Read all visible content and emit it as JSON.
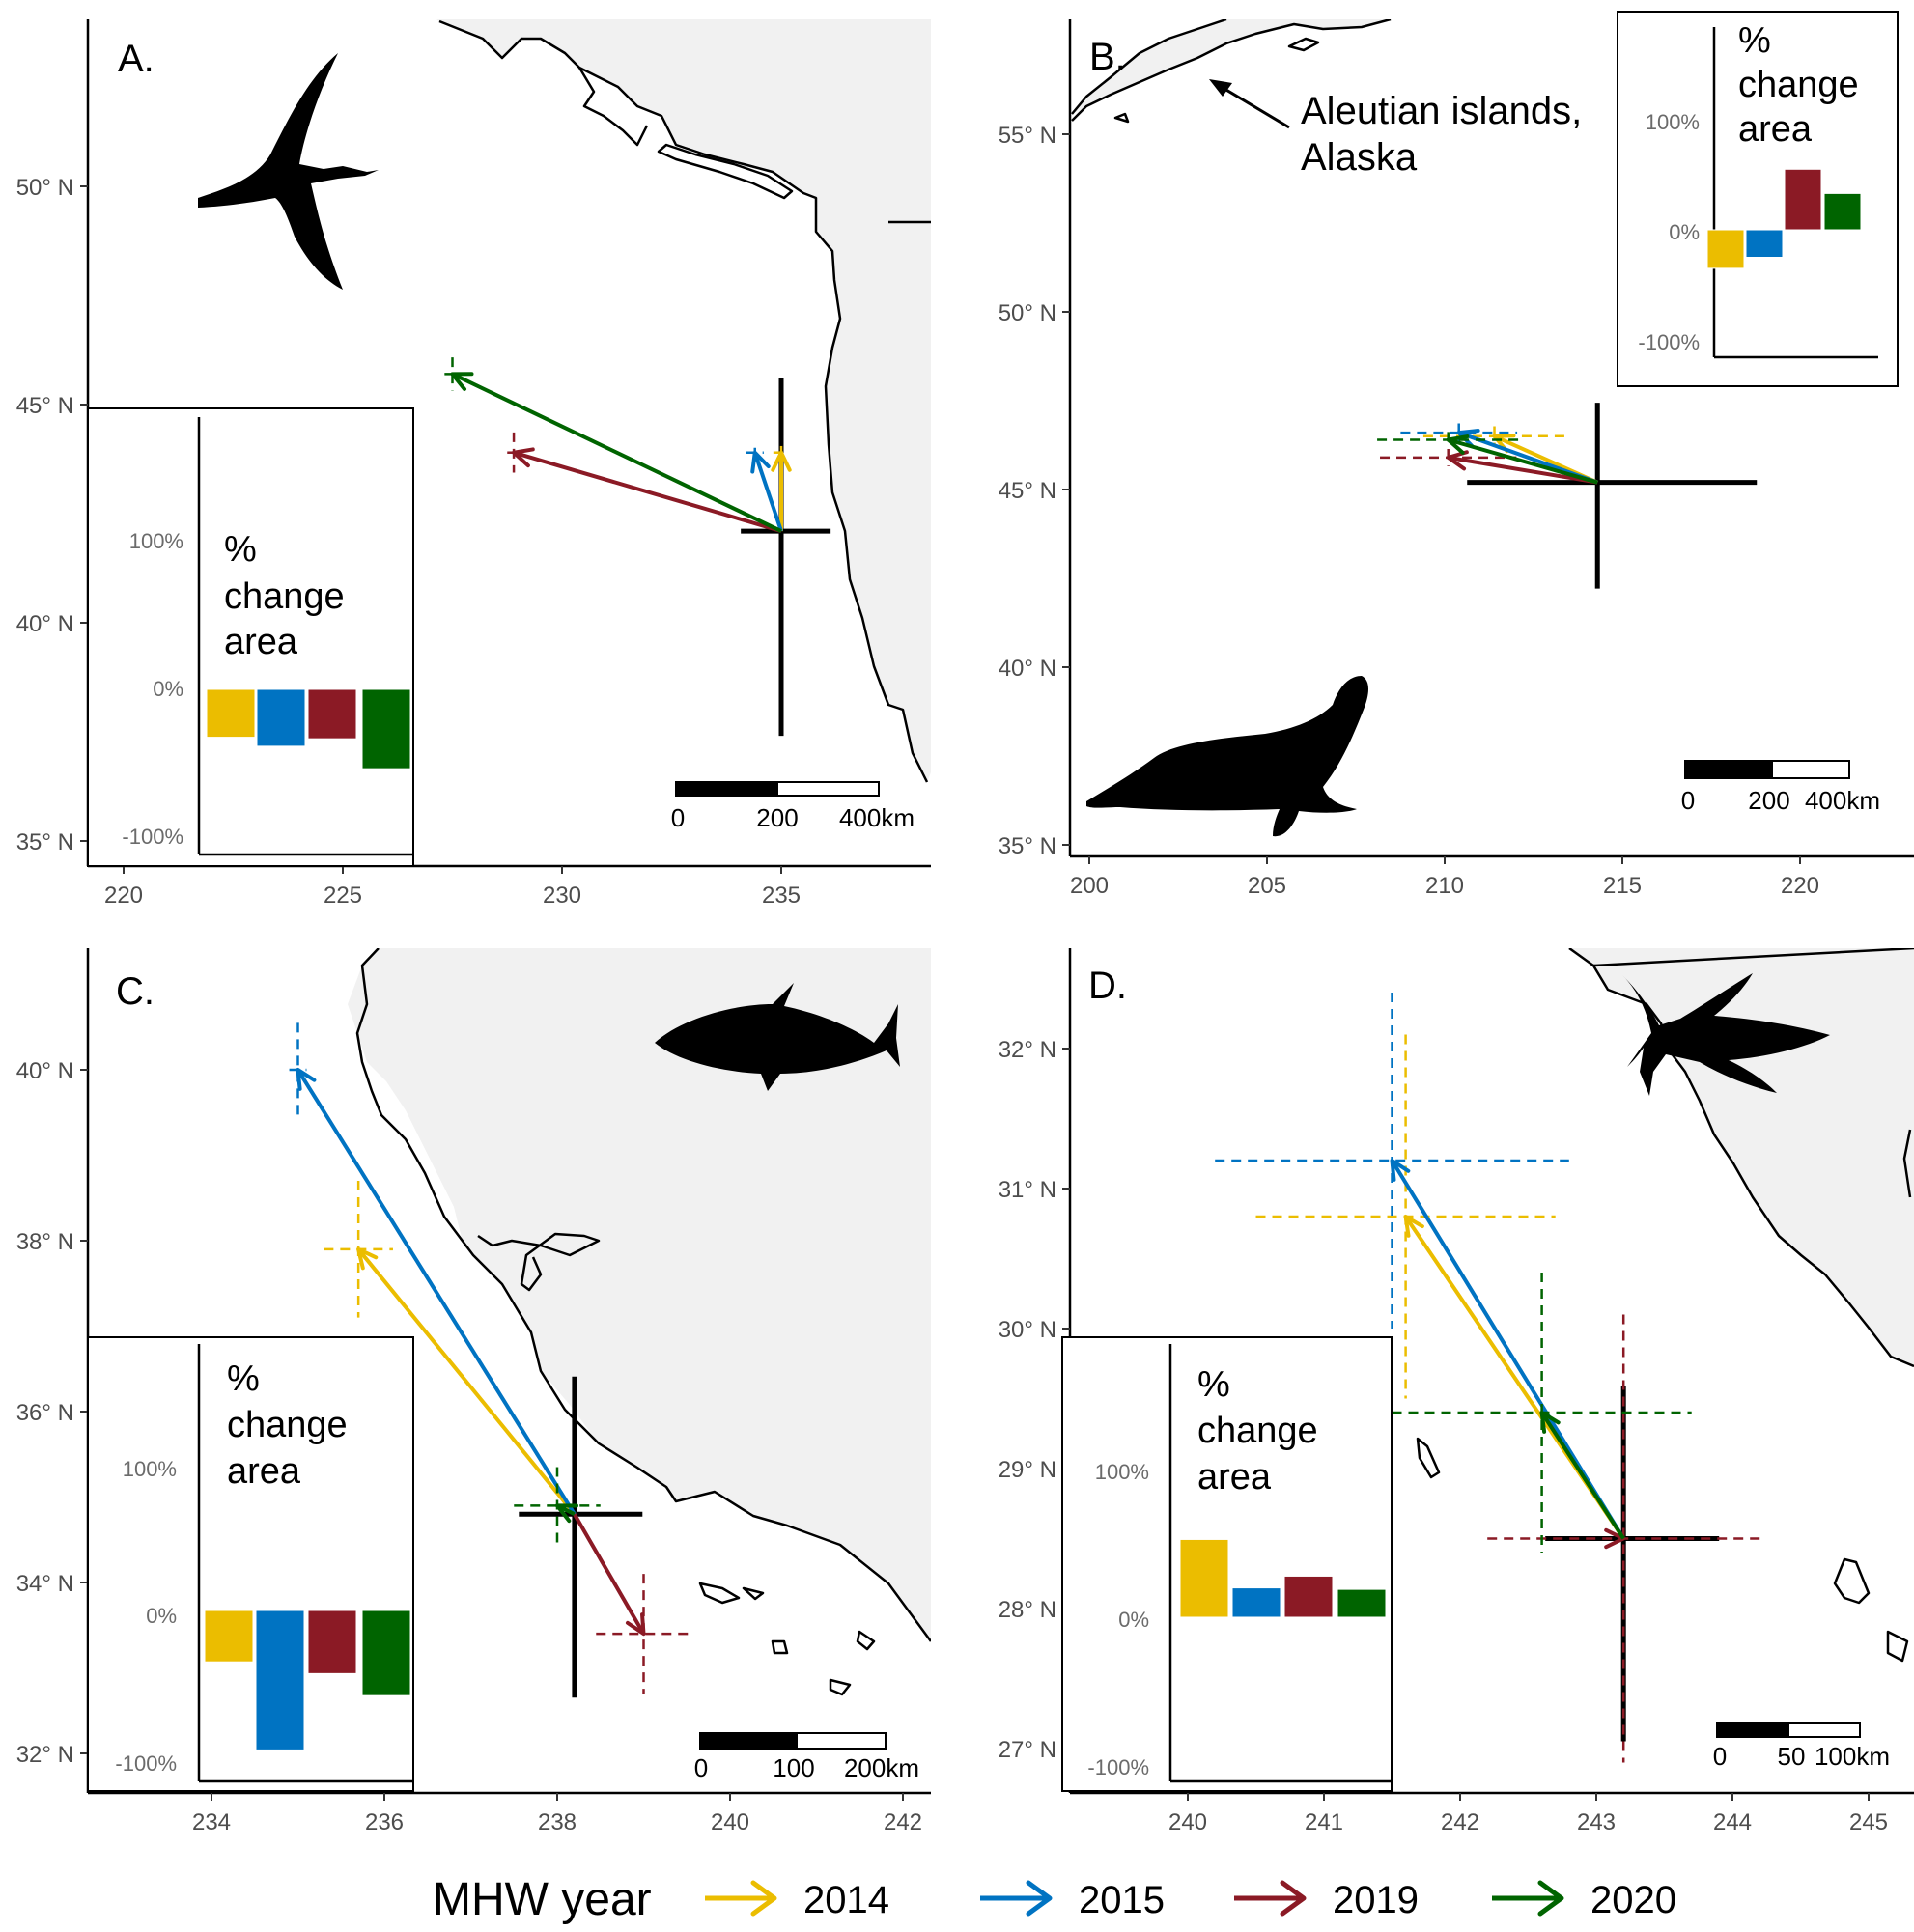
{
  "colors": {
    "y2014": "#ebbd00",
    "y2015": "#0073c2",
    "y2019": "#8b1a25",
    "y2020": "#006400",
    "land": "#f1f1f1"
  },
  "legend": {
    "title": "MHW year",
    "items": [
      {
        "label": "2014",
        "color": "#ebbd00"
      },
      {
        "label": "2015",
        "color": "#0073c2"
      },
      {
        "label": "2019",
        "color": "#8b1a25"
      },
      {
        "label": "2020",
        "color": "#006400"
      }
    ]
  },
  "panels": [
    {
      "label": "A.",
      "silhouette": "albatross-icon",
      "x_ticks": [
        "220",
        "225",
        "230",
        "235"
      ],
      "y_ticks": [
        "35° N",
        "40° N",
        "45° N",
        "50° N"
      ],
      "scale_bar": {
        "labels": [
          "0",
          "200",
          "400km"
        ]
      },
      "inset": {
        "title_lines": [
          "%",
          "change",
          "area"
        ],
        "ticks": [
          "100%",
          "0%",
          "-100%"
        ],
        "values_pct": [
          -32,
          -38,
          -33,
          -53
        ]
      },
      "centroid": {
        "lon": 235,
        "lat": 42.1
      },
      "shifts": [
        {
          "year": "2014",
          "lon": 235.0,
          "lat": 43.9
        },
        {
          "year": "2015",
          "lon": 234.4,
          "lat": 43.9
        },
        {
          "year": "2019",
          "lon": 228.9,
          "lat": 43.9
        },
        {
          "year": "2020",
          "lon": 227.5,
          "lat": 45.7
        }
      ]
    },
    {
      "label": "B.",
      "silhouette": "elephant-seal-icon",
      "x_ticks": [
        "200",
        "205",
        "210",
        "215",
        "220"
      ],
      "y_ticks": [
        "35° N",
        "40° N",
        "45° N",
        "50° N",
        "55° N"
      ],
      "scale_bar": {
        "labels": [
          "0",
          "200",
          "400km"
        ]
      },
      "annotation": [
        "Aleutian islands,",
        "Alaska"
      ],
      "inset": {
        "title_lines": [
          "%",
          "change",
          "area"
        ],
        "ticks": [
          "100%",
          "0%",
          "-100%"
        ],
        "values_pct": [
          -35,
          -25,
          55,
          33
        ]
      },
      "centroid": {
        "lon": 214.3,
        "lat": 45.2
      },
      "shifts": [
        {
          "year": "2014",
          "lon": 211.4,
          "lat": 46.5
        },
        {
          "year": "2015",
          "lon": 210.4,
          "lat": 46.6
        },
        {
          "year": "2019",
          "lon": 210.1,
          "lat": 45.9
        },
        {
          "year": "2020",
          "lon": 210.1,
          "lat": 46.4
        }
      ]
    },
    {
      "label": "C.",
      "silhouette": "bluefin-tuna-icon",
      "x_ticks": [
        "234",
        "236",
        "238",
        "240",
        "242"
      ],
      "y_ticks": [
        "32° N",
        "34° N",
        "36° N",
        "38° N",
        "40° N"
      ],
      "scale_bar": {
        "labels": [
          "0",
          "100",
          "200km"
        ]
      },
      "inset": {
        "title_lines": [
          "%",
          "change",
          "area"
        ],
        "ticks": [
          "100%",
          "0%",
          "-100%"
        ],
        "values_pct": [
          -35,
          -95,
          -43,
          -58
        ]
      },
      "centroid": {
        "lon": 238.2,
        "lat": 34.8
      },
      "shifts": [
        {
          "year": "2014",
          "lon": 235.7,
          "lat": 37.9
        },
        {
          "year": "2015",
          "lon": 235.0,
          "lat": 40.0
        },
        {
          "year": "2019",
          "lon": 239.0,
          "lat": 33.4
        },
        {
          "year": "2020",
          "lon": 238.0,
          "lat": 34.9
        }
      ]
    },
    {
      "label": "D.",
      "silhouette": "yellowfin-tuna-icon",
      "x_ticks": [
        "240",
        "241",
        "242",
        "243",
        "244",
        "245"
      ],
      "y_ticks": [
        "27° N",
        "28° N",
        "29° N",
        "30° N",
        "31° N",
        "32° N"
      ],
      "scale_bar": {
        "labels": [
          "0",
          "50",
          "100km"
        ]
      },
      "inset": {
        "title_lines": [
          "%",
          "change",
          "area"
        ],
        "ticks": [
          "100%",
          "0%",
          "-100%"
        ],
        "values_pct": [
          53,
          20,
          28,
          19
        ]
      },
      "centroid": {
        "lon": 243.2,
        "lat": 28.5
      },
      "shifts": [
        {
          "year": "2014",
          "lon": 241.6,
          "lat": 30.8
        },
        {
          "year": "2015",
          "lon": 241.5,
          "lat": 31.2
        },
        {
          "year": "2019",
          "lon": 243.2,
          "lat": 28.5
        },
        {
          "year": "2020",
          "lon": 242.6,
          "lat": 29.4
        }
      ]
    }
  ]
}
